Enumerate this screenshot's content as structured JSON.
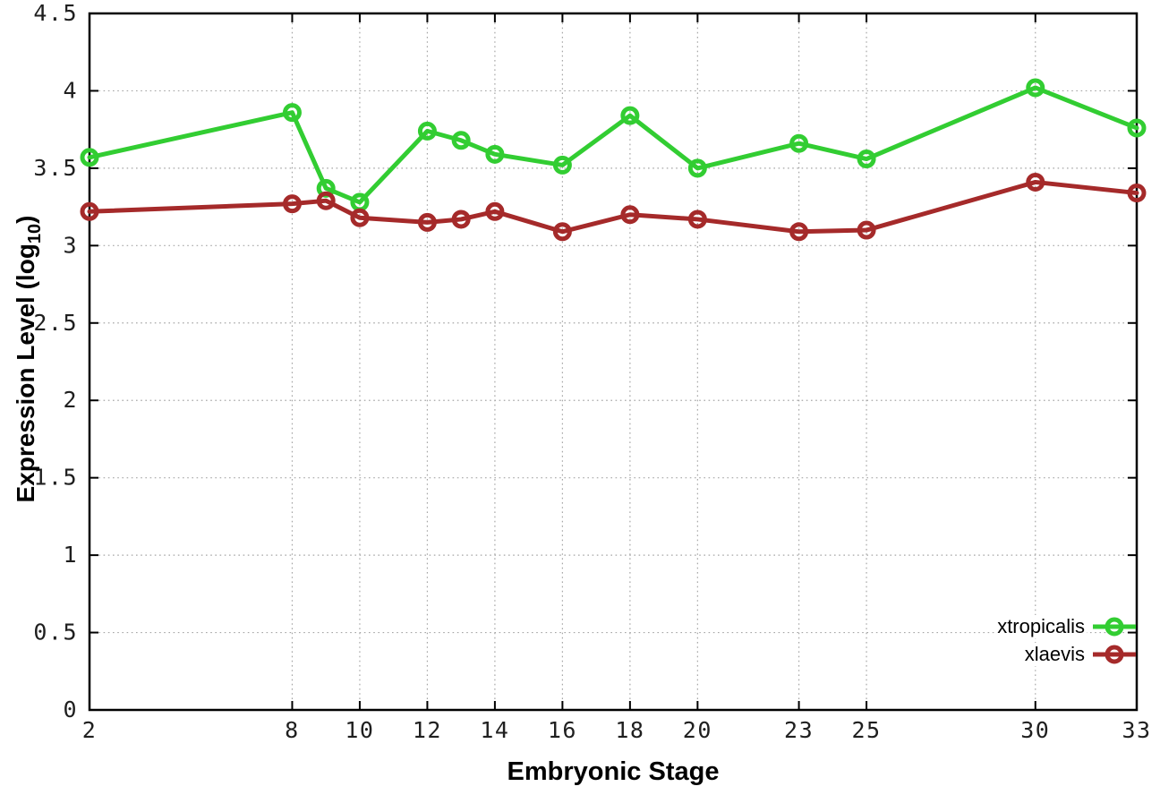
{
  "chart_data": {
    "type": "line",
    "xlabel": "Embryonic Stage",
    "ylabel": "Expression Level (log10)",
    "ylabel_parts": {
      "main": "Expression Level (log",
      "sub": "10",
      "close": ")"
    },
    "x": [
      2,
      8,
      9,
      10,
      12,
      13,
      14,
      16,
      18,
      20,
      23,
      25,
      30,
      33
    ],
    "series": [
      {
        "name": "xtropicalis",
        "color": "#32CD32",
        "marker": "open-circle",
        "values": [
          3.57,
          3.86,
          3.37,
          3.28,
          3.74,
          3.68,
          3.59,
          3.52,
          3.84,
          3.5,
          3.66,
          3.56,
          4.02,
          3.76
        ]
      },
      {
        "name": "xlaevis",
        "color": "#A52A2A",
        "marker": "open-circle",
        "values": [
          3.22,
          3.27,
          3.29,
          3.18,
          3.15,
          3.17,
          3.22,
          3.09,
          3.2,
          3.17,
          3.09,
          3.1,
          3.41,
          3.34
        ]
      }
    ],
    "xlim": [
      2,
      33
    ],
    "ylim": [
      0,
      4.5
    ],
    "xticks": [
      2,
      8,
      10,
      12,
      14,
      16,
      18,
      20,
      23,
      25,
      30,
      33
    ],
    "xtick_labels": [
      "2",
      "8",
      "10",
      "12",
      "14",
      "16",
      "18",
      "20",
      "23",
      "25",
      "30",
      "33"
    ],
    "yticks": [
      0,
      0.5,
      1,
      1.5,
      2,
      2.5,
      3,
      3.5,
      4,
      4.5
    ],
    "ytick_labels": [
      "0",
      "0.5",
      "1",
      "1.5",
      "2",
      "2.5",
      "3",
      "3.5",
      "4",
      "4.5"
    ],
    "grid": true,
    "legend_position": "inside-bottom-right",
    "grid_color": "#a6a6a6",
    "axis_color": "#000000",
    "tick_label_color": "#1f1f1f"
  }
}
